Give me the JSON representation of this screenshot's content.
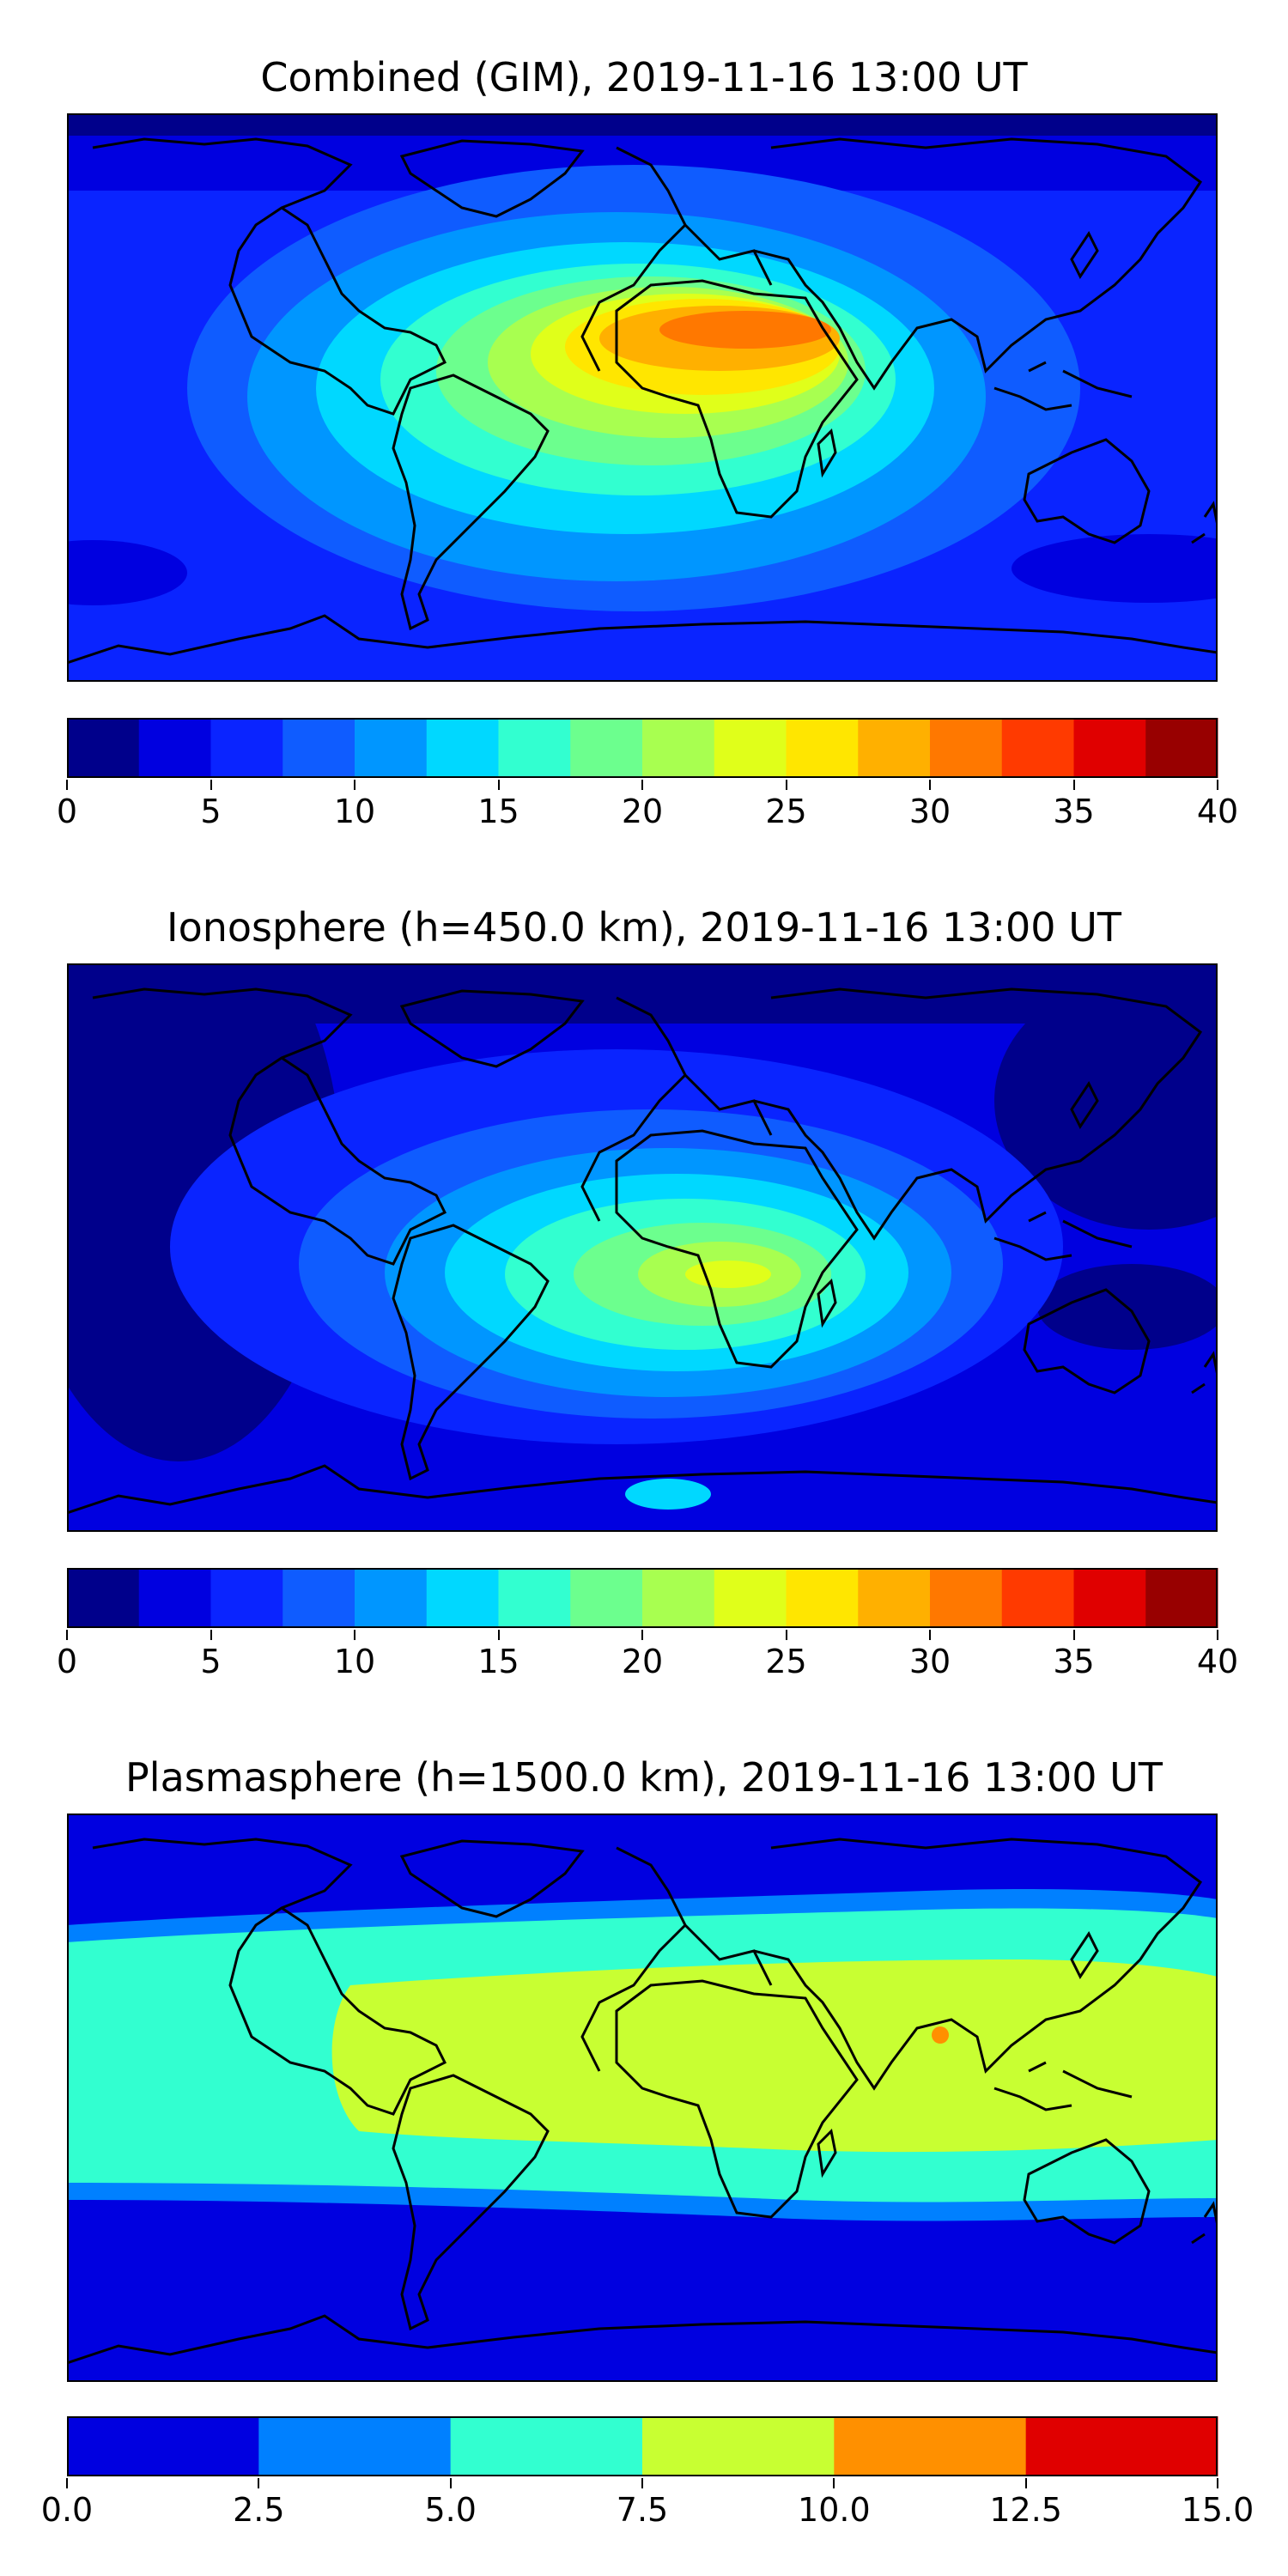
{
  "panels": [
    {
      "id": "combined",
      "title": "Combined (GIM), 2019-11-16 13:00 UT",
      "level_range": [
        0,
        40
      ],
      "colorbar": {
        "ticks": [
          "0",
          "5",
          "10",
          "15",
          "20",
          "25",
          "30",
          "35",
          "40"
        ],
        "bands": [
          "#00008b",
          "#0000e0",
          "#0a24ff",
          "#0f5cff",
          "#0096ff",
          "#00d8ff",
          "#32ffd0",
          "#6cff8e",
          "#a8ff50",
          "#e0ff1a",
          "#ffe600",
          "#ffb000",
          "#ff7800",
          "#ff3a00",
          "#e00000",
          "#980000"
        ]
      }
    },
    {
      "id": "ionosphere",
      "title": "Ionosphere  (h=450.0 km), 2019-11-16 13:00 UT",
      "level_range": [
        0,
        40
      ],
      "colorbar": {
        "ticks": [
          "0",
          "5",
          "10",
          "15",
          "20",
          "25",
          "30",
          "35",
          "40"
        ],
        "bands": [
          "#00008b",
          "#0000e0",
          "#0a24ff",
          "#0f5cff",
          "#0096ff",
          "#00d8ff",
          "#32ffd0",
          "#6cff8e",
          "#a8ff50",
          "#e0ff1a",
          "#ffe600",
          "#ffb000",
          "#ff7800",
          "#ff3a00",
          "#e00000",
          "#980000"
        ]
      }
    },
    {
      "id": "plasmasphere",
      "title": "Plasmasphere (h=1500.0 km), 2019-11-16 13:00 UT",
      "level_range": [
        0.0,
        15.0
      ],
      "colorbar": {
        "ticks": [
          "0.0",
          "2.5",
          "5.0",
          "7.5",
          "10.0",
          "12.5",
          "15.0"
        ],
        "bands": [
          "#0000e0",
          "#0080ff",
          "#32ffd0",
          "#c8ff32",
          "#ff9000",
          "#e00000"
        ]
      }
    }
  ]
}
